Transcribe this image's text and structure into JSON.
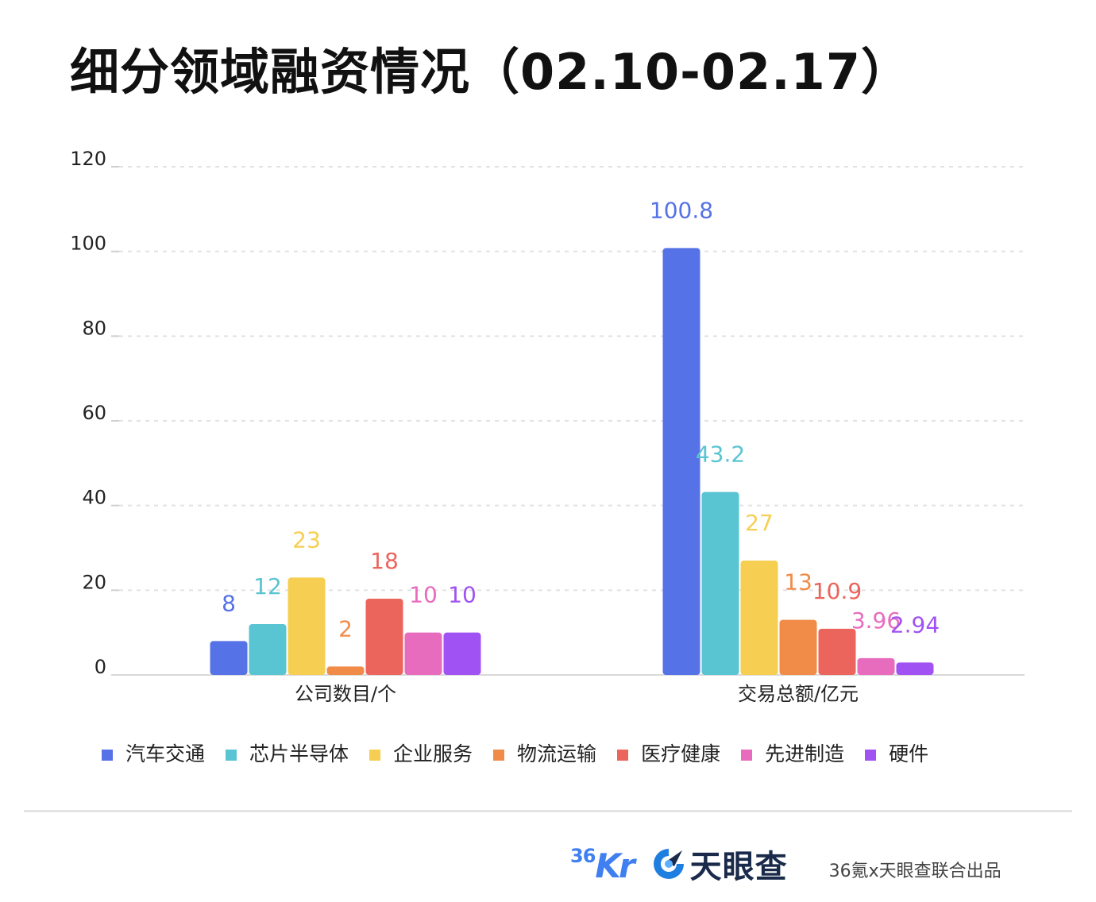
{
  "chart_data": {
    "type": "bar",
    "title": "细分领域融资情况（02.10-02.17）",
    "categories": [
      "公司数目/个",
      "交易总额/亿元"
    ],
    "ylim": [
      0,
      120
    ],
    "yticks": [
      0,
      20,
      40,
      60,
      80,
      100,
      120
    ],
    "grid": true,
    "legend_position": "bottom",
    "series": [
      {
        "name": "汽车交通",
        "color": "#5572e6",
        "values": [
          8,
          100.8
        ],
        "labels": [
          "8",
          "100.8"
        ]
      },
      {
        "name": "芯片半导体",
        "color": "#59c4d2",
        "values": [
          12,
          43.2
        ],
        "labels": [
          "12",
          "43.2"
        ]
      },
      {
        "name": "企业服务",
        "color": "#f6cf52",
        "values": [
          23,
          27
        ],
        "labels": [
          "23",
          "27"
        ]
      },
      {
        "name": "物流运输",
        "color": "#f08c48",
        "values": [
          2,
          13
        ],
        "labels": [
          "2",
          "13"
        ]
      },
      {
        "name": "医疗健康",
        "color": "#eb655c",
        "values": [
          18,
          10.9
        ],
        "labels": [
          "18",
          "10.9"
        ]
      },
      {
        "name": "先进制造",
        "color": "#e86cbd",
        "values": [
          10,
          3.96
        ],
        "labels": [
          "10",
          "3.96"
        ]
      },
      {
        "name": "硬件",
        "color": "#a052f2",
        "values": [
          10,
          2.94
        ],
        "labels": [
          "10",
          "2.94"
        ]
      }
    ]
  },
  "footer": {
    "logo_36": "36",
    "logo_kr": "Kr",
    "logo_tianyancha": "天眼查",
    "credit": "36氪x天眼查联合出品"
  }
}
